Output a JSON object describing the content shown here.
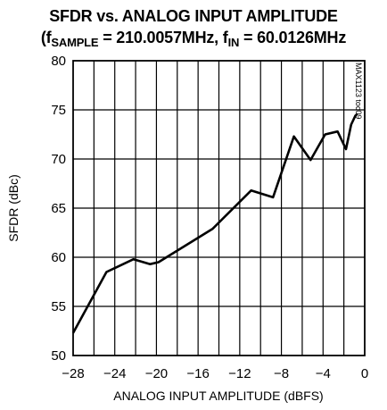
{
  "chart_data": {
    "type": "line",
    "title_line1": "SFDR vs. ANALOG INPUT AMPLITUDE",
    "title_line2": {
      "p1": "(f",
      "s1": "SAMPLE",
      "p2": " = 210.0057MHz, f",
      "s2": "IN",
      "p3": " = 60.0126MHz"
    },
    "xlabel": "ANALOG INPUT AMPLITUDE (dBFS)",
    "ylabel": "SFDR (dBc)",
    "xlim": [
      -28,
      0
    ],
    "ylim": [
      50,
      80
    ],
    "xticks": [
      -28,
      -24,
      -20,
      -16,
      -12,
      -8,
      -4,
      0
    ],
    "yticks": [
      50,
      55,
      60,
      65,
      70,
      75,
      80
    ],
    "xtick_labels": [
      "−28",
      "−24",
      "−20",
      "−16",
      "−12",
      "−8",
      "−4",
      "0"
    ],
    "ytick_labels": [
      "50",
      "55",
      "60",
      "65",
      "70",
      "75",
      "80"
    ],
    "vgrid": [
      -26,
      -22,
      -18,
      -14,
      -10,
      -6,
      -2
    ],
    "grid": true,
    "annotation": "MAX1123 toc09",
    "series": [
      {
        "x": [
          -28,
          -24.8,
          -22.2,
          -20.6,
          -19.8,
          -14.6,
          -10.9,
          -8.8,
          -6.8,
          -5.2,
          -3.8,
          -2.6,
          -1.8,
          -1.3,
          -0.9,
          -0.7
        ],
        "y": [
          52.3,
          58.5,
          59.8,
          59.3,
          59.5,
          62.9,
          66.8,
          66.1,
          72.3,
          69.9,
          72.5,
          72.8,
          71.0,
          73.5,
          74.4,
          74.6
        ]
      }
    ]
  }
}
